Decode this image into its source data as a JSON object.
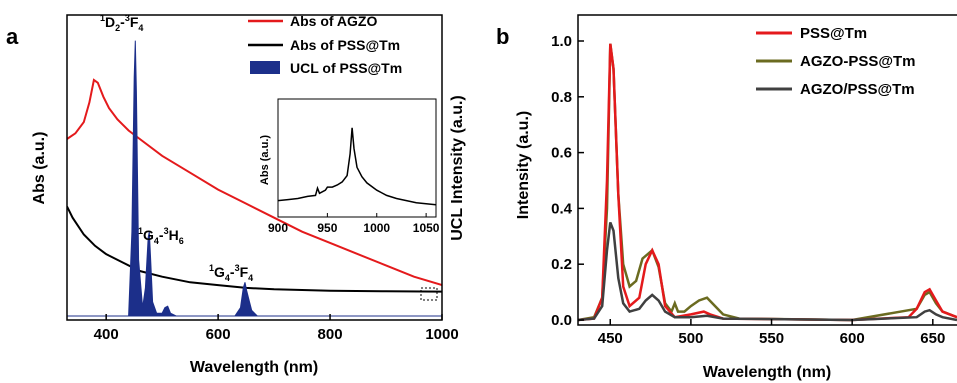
{
  "chart_data": [
    {
      "panel_label": "a",
      "type": "line",
      "xlabel": "Wavelength (nm)",
      "ylabel": "Abs (a.u.)",
      "right_ylabel": "UCL Intensity (a.u.)",
      "xlim": [
        330,
        1000
      ],
      "xticks": [
        400,
        600,
        800,
        1000
      ],
      "ylim": [
        0,
        1.0
      ],
      "legend_position": "top-right",
      "series": [
        {
          "name": "Abs of AGZO",
          "color": "#e41a1c",
          "x": [
            330,
            345,
            360,
            370,
            378,
            385,
            395,
            405,
            420,
            440,
            460,
            500,
            550,
            600,
            650,
            700,
            750,
            800,
            850,
            900,
            950,
            1000
          ],
          "y": [
            0.63,
            0.65,
            0.69,
            0.76,
            0.84,
            0.83,
            0.78,
            0.74,
            0.7,
            0.66,
            0.63,
            0.57,
            0.51,
            0.45,
            0.4,
            0.35,
            0.3,
            0.26,
            0.22,
            0.18,
            0.14,
            0.11
          ]
        },
        {
          "name": "Abs of PSS@Tm",
          "color": "#000000",
          "x": [
            330,
            340,
            360,
            380,
            400,
            430,
            460,
            500,
            550,
            600,
            650,
            700,
            800,
            900,
            1000
          ],
          "y": [
            0.39,
            0.35,
            0.29,
            0.25,
            0.22,
            0.19,
            0.16,
            0.14,
            0.12,
            0.11,
            0.1,
            0.095,
            0.09,
            0.088,
            0.087
          ]
        },
        {
          "name": "UCL of PSS@Tm",
          "color": "#1c2f8a",
          "x": [
            330,
            440,
            446,
            450,
            452,
            454,
            458,
            465,
            470,
            475,
            477,
            479,
            483,
            490,
            500,
            505,
            510,
            515,
            525,
            630,
            640,
            645,
            648,
            651,
            656,
            660,
            670,
            1000
          ],
          "y": [
            0,
            0,
            0.3,
            0.85,
            0.98,
            0.8,
            0.2,
            0.03,
            0.1,
            0.28,
            0.3,
            0.22,
            0.05,
            0.01,
            0.01,
            0.03,
            0.035,
            0.01,
            0,
            0,
            0.03,
            0.1,
            0.12,
            0.09,
            0.05,
            0.02,
            0,
            0
          ]
        }
      ],
      "annotations": [
        {
          "text": "1D2-3F4",
          "x": 452
        },
        {
          "text": "1G4-3H6",
          "x": 470
        },
        {
          "text": "1G4-3F4",
          "x": 650
        }
      ],
      "inset": {
        "ylabel": "Abs (a.u.)",
        "xlim": [
          900,
          1060
        ],
        "xticks": [
          900,
          950,
          1000,
          1050
        ],
        "x": [
          900,
          910,
          920,
          930,
          938,
          940,
          942,
          948,
          950,
          955,
          960,
          965,
          970,
          973,
          975,
          977,
          980,
          985,
          990,
          1000,
          1010,
          1020,
          1030,
          1040,
          1050,
          1060
        ],
        "y": [
          0.1,
          0.11,
          0.12,
          0.14,
          0.15,
          0.22,
          0.17,
          0.2,
          0.23,
          0.23,
          0.25,
          0.28,
          0.34,
          0.55,
          0.8,
          0.6,
          0.42,
          0.33,
          0.27,
          0.2,
          0.15,
          0.12,
          0.1,
          0.08,
          0.07,
          0.06
        ]
      }
    },
    {
      "panel_label": "b",
      "type": "line",
      "xlabel": "Wavelength (nm)",
      "ylabel": "Intensity (a.u.)",
      "xlim": [
        430,
        665
      ],
      "xticks": [
        450,
        500,
        550,
        600,
        650
      ],
      "ylim": [
        -0.02,
        1.1
      ],
      "yticks": [
        0.0,
        0.2,
        0.4,
        0.6,
        0.8,
        1.0
      ],
      "legend_position": "top-right",
      "series": [
        {
          "name": "PSS@Tm",
          "color": "#e41a1c",
          "x": [
            430,
            440,
            445,
            448,
            450,
            452,
            455,
            458,
            462,
            468,
            472,
            476,
            480,
            484,
            490,
            500,
            508,
            512,
            520,
            600,
            635,
            640,
            645,
            648,
            652,
            656,
            665
          ],
          "y": [
            0,
            0.005,
            0.08,
            0.5,
            0.99,
            0.9,
            0.45,
            0.12,
            0.05,
            0.08,
            0.2,
            0.25,
            0.2,
            0.05,
            0.01,
            0.02,
            0.03,
            0.02,
            0.005,
            0,
            0.01,
            0.04,
            0.1,
            0.11,
            0.07,
            0.03,
            0.01
          ]
        },
        {
          "name": "AGZO-PSS@Tm",
          "color": "#6b6b20",
          "x": [
            430,
            440,
            445,
            448,
            450,
            452,
            455,
            458,
            462,
            466,
            470,
            476,
            480,
            484,
            488,
            490,
            492,
            496,
            500,
            505,
            510,
            515,
            520,
            530,
            600,
            640,
            645,
            648,
            652,
            656,
            665
          ],
          "y": [
            0,
            0.01,
            0.08,
            0.4,
            0.99,
            0.9,
            0.45,
            0.2,
            0.12,
            0.14,
            0.22,
            0.25,
            0.19,
            0.06,
            0.03,
            0.06,
            0.03,
            0.03,
            0.05,
            0.07,
            0.08,
            0.05,
            0.02,
            0.005,
            0,
            0.04,
            0.09,
            0.1,
            0.06,
            0.03,
            0.01
          ]
        },
        {
          "name": "AGZO/PSS@Tm",
          "color": "#404040",
          "x": [
            430,
            440,
            445,
            448,
            450,
            452,
            455,
            458,
            462,
            468,
            472,
            476,
            480,
            484,
            490,
            500,
            510,
            520,
            600,
            640,
            645,
            648,
            652,
            656,
            665
          ],
          "y": [
            0,
            0.005,
            0.05,
            0.25,
            0.35,
            0.32,
            0.15,
            0.06,
            0.03,
            0.04,
            0.07,
            0.09,
            0.07,
            0.03,
            0.01,
            0.01,
            0.015,
            0.005,
            0,
            0.01,
            0.03,
            0.035,
            0.02,
            0.01,
            0
          ]
        }
      ]
    }
  ]
}
